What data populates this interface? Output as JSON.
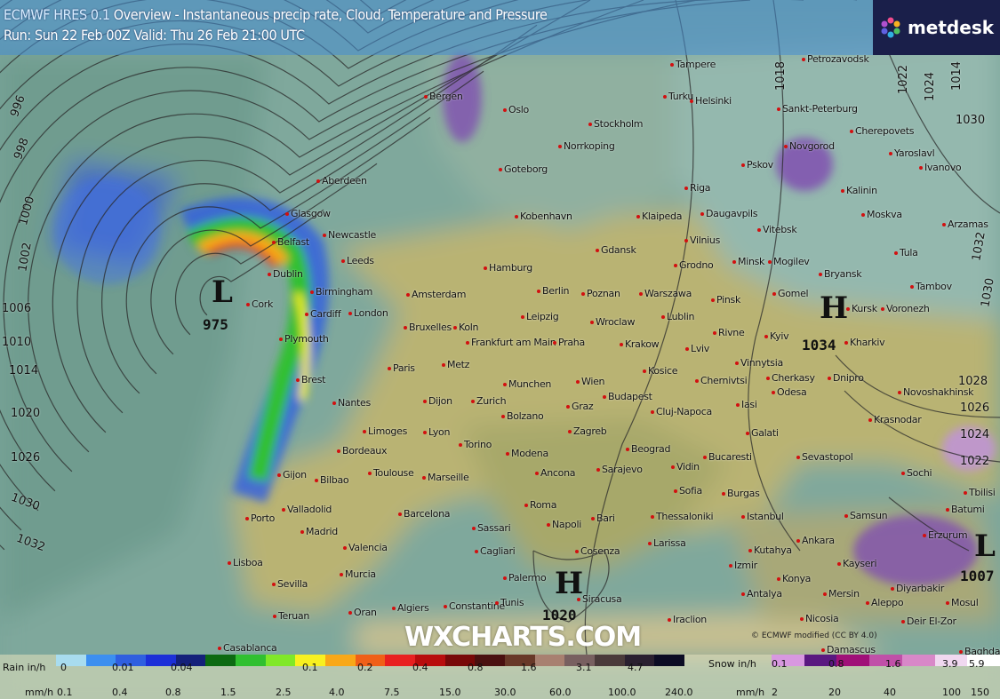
{
  "header": {
    "model": "ECMWF HRES 0.1",
    "title": "Overview - Instantaneous precip rate, Cloud, Temperature and Pressure",
    "run": "Run: Sun 22 Feb 00Z Valid: Thu 26 Feb 21:00 UTC"
  },
  "logo": {
    "text": "metdesk"
  },
  "watermark": "WXCHARTS.COM",
  "copyright": "© ECMWF  modified (CC BY 4.0)",
  "pressure_systems": [
    {
      "type": "L",
      "value": "975"
    },
    {
      "type": "H",
      "value": "1034"
    },
    {
      "type": "H",
      "value": "1020"
    },
    {
      "type": "L",
      "value": "1007"
    }
  ],
  "isobar_labels": [
    "996",
    "998",
    "1000",
    "1002",
    "1006",
    "1010",
    "1014",
    "1020",
    "1026",
    "1030",
    "1032",
    "1030",
    "1032",
    "1030",
    "1028",
    "1026",
    "1024",
    "1022",
    "1014",
    "1018",
    "1022",
    "1024"
  ],
  "cities": [
    "Tampere",
    "Petrozavodsk",
    "Bergen",
    "Oslo",
    "Turku",
    "Helsinki",
    "Sankt-Peterburg",
    "Stockholm",
    "Norrkoping",
    "Novgorod",
    "Cherepovets",
    "Goteborg",
    "Pskov",
    "Yaroslavl",
    "Ivanovo",
    "Aberdeen",
    "Riga",
    "Kalinin",
    "Kobenhavn",
    "Klaipeda",
    "Daugavpils",
    "Moskva",
    "Arzamas",
    "Glasgow",
    "Vitebsk",
    "Vilnius",
    "Belfast",
    "Newcastle",
    "Gdansk",
    "Tula",
    "Leeds",
    "Hamburg",
    "Grodno",
    "Minsk",
    "Mogilev",
    "Bryansk",
    "Dublin",
    "Birmingham",
    "Amsterdam",
    "Berlin",
    "Poznan",
    "Warszawa",
    "Pinsk",
    "Gomel",
    "Kursk",
    "Voronezh",
    "Tambov",
    "Cork",
    "Cardiff",
    "London",
    "Bruxelles",
    "Koln",
    "Leipzig",
    "Wroclaw",
    "Lublin",
    "Rivne",
    "Kyiv",
    "Kharkiv",
    "Plymouth",
    "Frankfurt am Main",
    "Praha",
    "Krakow",
    "Lviv",
    "Vinnytsia",
    "Cherkasy",
    "Paris",
    "Metz",
    "Kosice",
    "Dnipro",
    "Brest",
    "Munchen",
    "Wien",
    "Budapest",
    "Chernivtsi",
    "Novoshakhinsk",
    "Nantes",
    "Dijon",
    "Zurich",
    "Graz",
    "Cluj-Napoca",
    "Iasi",
    "Odesa",
    "Limoges",
    "Lyon",
    "Bolzano",
    "Zagreb",
    "Galati",
    "Krasnodar",
    "Bordeaux",
    "Torino",
    "Modena",
    "Ancona",
    "Beograd",
    "Bucaresti",
    "Sevastopol",
    "Toulouse",
    "Marseille",
    "Sarajevo",
    "Vidin",
    "Sochi",
    "Gijon",
    "Bilbao",
    "Sofia",
    "Burgas",
    "Batumi",
    "Valladolid",
    "Barcelona",
    "Roma",
    "Istanbul",
    "Samsun",
    "Thessaloniki",
    "Porto",
    "Madrid",
    "Sassari",
    "Bari",
    "Napoli",
    "Ankara",
    "Erzurum",
    "Valencia",
    "Cagliari",
    "Cosenza",
    "Larissa",
    "Kutahya",
    "Kayseri",
    "Lisboa",
    "Murcia",
    "Izmir",
    "Konya",
    "Sevilla",
    "Palermo",
    "Siracusa",
    "Antalya",
    "Mersin",
    "Diyarbakir",
    "Algiers",
    "Constantine",
    "Tunis",
    "Oran",
    "Teruan",
    "Casablanca",
    "Nicosia",
    "Aleppo",
    "Iraclion",
    "Deir El-Zor",
    "Mosul",
    "Damascus",
    "Baghdad",
    "Tbilisi"
  ],
  "legend": {
    "rain_label": "Rain in/h",
    "rain_inh": [
      "0",
      "0.01",
      "0.04",
      "0.1",
      "0.2",
      "0.4",
      "0.8",
      "1.6",
      "3.1",
      "4.7"
    ],
    "rain_mmh_label": "mm/h",
    "rain_mmh": [
      "0.1",
      "0.4",
      "0.8",
      "1.5",
      "2.5",
      "4.0",
      "7.5",
      "15.0",
      "30.0",
      "60.0",
      "100.0",
      "240.0"
    ],
    "rain_colors": [
      "#a8dcef",
      "#3c8ff0",
      "#2f5fe0",
      "#1c2fd8",
      "#14207a",
      "#0c6a12",
      "#30c030",
      "#80e828",
      "#f8f020",
      "#f8a818",
      "#f06018",
      "#e82020",
      "#b80c0c",
      "#780808",
      "#4a1010",
      "#683828",
      "#a88070",
      "#786060",
      "#4a3a3a",
      "#2a2030",
      "#0c0c24"
    ],
    "snow_label": "Snow in/h",
    "snow_inh": [
      "0.1",
      "0.8",
      "1.6",
      "3.9",
      "5.9"
    ],
    "snow_mmh_label": "mm/h",
    "snow_mmh": [
      "2",
      "20",
      "40",
      "100",
      "150"
    ],
    "snow_colors": [
      "#d898e0",
      "#5a1880",
      "#a01078",
      "#c050a8",
      "#d888c8",
      "#f0d8f0",
      "#ffffff"
    ]
  }
}
